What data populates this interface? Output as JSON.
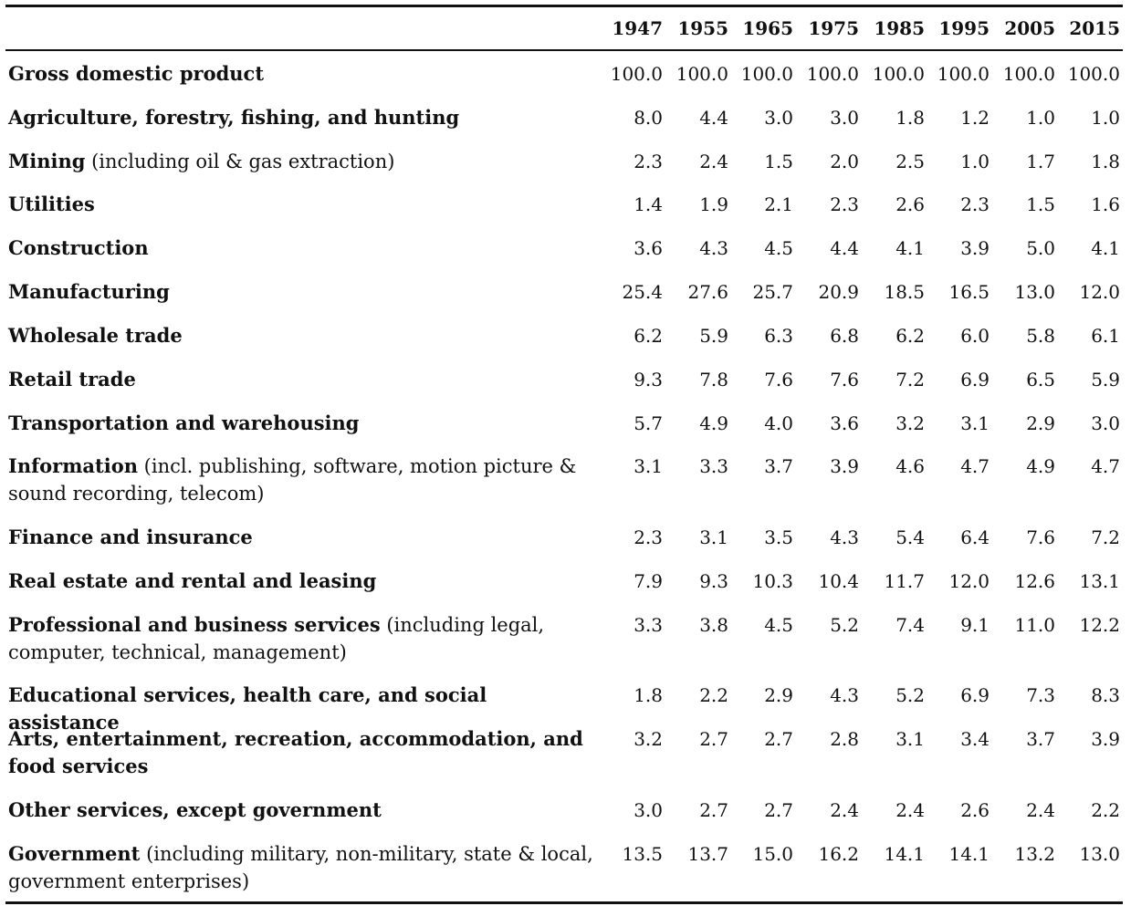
{
  "table": {
    "years": [
      "1947",
      "1955",
      "1965",
      "1975",
      "1985",
      "1995",
      "2005",
      "2015"
    ],
    "rows": [
      {
        "name": "Gross domestic product",
        "note": "",
        "values": [
          "100.0",
          "100.0",
          "100.0",
          "100.0",
          "100.0",
          "100.0",
          "100.0",
          "100.0"
        ]
      },
      {
        "name": "Agriculture, forestry, fishing, and hunting",
        "note": "",
        "values": [
          "8.0",
          "4.4",
          "3.0",
          "3.0",
          "1.8",
          "1.2",
          "1.0",
          "1.0"
        ]
      },
      {
        "name": "Mining",
        "note": " (including oil & gas extraction)",
        "values": [
          "2.3",
          "2.4",
          "1.5",
          "2.0",
          "2.5",
          "1.0",
          "1.7",
          "1.8"
        ]
      },
      {
        "name": "Utilities",
        "note": "",
        "values": [
          "1.4",
          "1.9",
          "2.1",
          "2.3",
          "2.6",
          "2.3",
          "1.5",
          "1.6"
        ]
      },
      {
        "name": "Construction",
        "note": "",
        "values": [
          "3.6",
          "4.3",
          "4.5",
          "4.4",
          "4.1",
          "3.9",
          "5.0",
          "4.1"
        ]
      },
      {
        "name": "Manufacturing",
        "note": "",
        "values": [
          "25.4",
          "27.6",
          "25.7",
          "20.9",
          "18.5",
          "16.5",
          "13.0",
          "12.0"
        ]
      },
      {
        "name": "Wholesale trade",
        "note": "",
        "values": [
          "6.2",
          "5.9",
          "6.3",
          "6.8",
          "6.2",
          "6.0",
          "5.8",
          "6.1"
        ]
      },
      {
        "name": "Retail trade",
        "note": "",
        "values": [
          "9.3",
          "7.8",
          "7.6",
          "7.6",
          "7.2",
          "6.9",
          "6.5",
          "5.9"
        ]
      },
      {
        "name": "Transportation and warehousing",
        "note": "",
        "values": [
          "5.7",
          "4.9",
          "4.0",
          "3.6",
          "3.2",
          "3.1",
          "2.9",
          "3.0"
        ]
      },
      {
        "name": "Information",
        "note": " (incl. publishing, software, motion picture & sound recording, telecom)",
        "values": [
          "3.1",
          "3.3",
          "3.7",
          "3.9",
          "4.6",
          "4.7",
          "4.9",
          "4.7"
        ]
      },
      {
        "name": "Finance and insurance",
        "note": "",
        "values": [
          "2.3",
          "3.1",
          "3.5",
          "4.3",
          "5.4",
          "6.4",
          "7.6",
          "7.2"
        ]
      },
      {
        "name": "Real estate and rental and leasing",
        "note": "",
        "values": [
          "7.9",
          "9.3",
          "10.3",
          "10.4",
          "11.7",
          "12.0",
          "12.6",
          "13.1"
        ]
      },
      {
        "name": "Professional and business services",
        "note": " (including legal, computer, technical, management)",
        "values": [
          "3.3",
          "3.8",
          "4.5",
          "5.2",
          "7.4",
          "9.1",
          "11.0",
          "12.2"
        ]
      },
      {
        "name": "Educational services, health care, and social assistance",
        "note": "",
        "values": [
          "1.8",
          "2.2",
          "2.9",
          "4.3",
          "5.2",
          "6.9",
          "7.3",
          "8.3"
        ]
      },
      {
        "name": "Arts, entertainment, recreation, accommodation, and food services",
        "note": "",
        "values": [
          "3.2",
          "2.7",
          "2.7",
          "2.8",
          "3.1",
          "3.4",
          "3.7",
          "3.9"
        ]
      },
      {
        "name": "Other services, except government",
        "note": "",
        "values": [
          "3.0",
          "2.7",
          "2.7",
          "2.4",
          "2.4",
          "2.6",
          "2.4",
          "2.2"
        ]
      },
      {
        "name": "Government",
        "note": " (including military, non-military, state & local, government enterprises)",
        "values": [
          "13.5",
          "13.7",
          "15.0",
          "16.2",
          "14.1",
          "14.1",
          "13.2",
          "13.0"
        ]
      }
    ]
  }
}
